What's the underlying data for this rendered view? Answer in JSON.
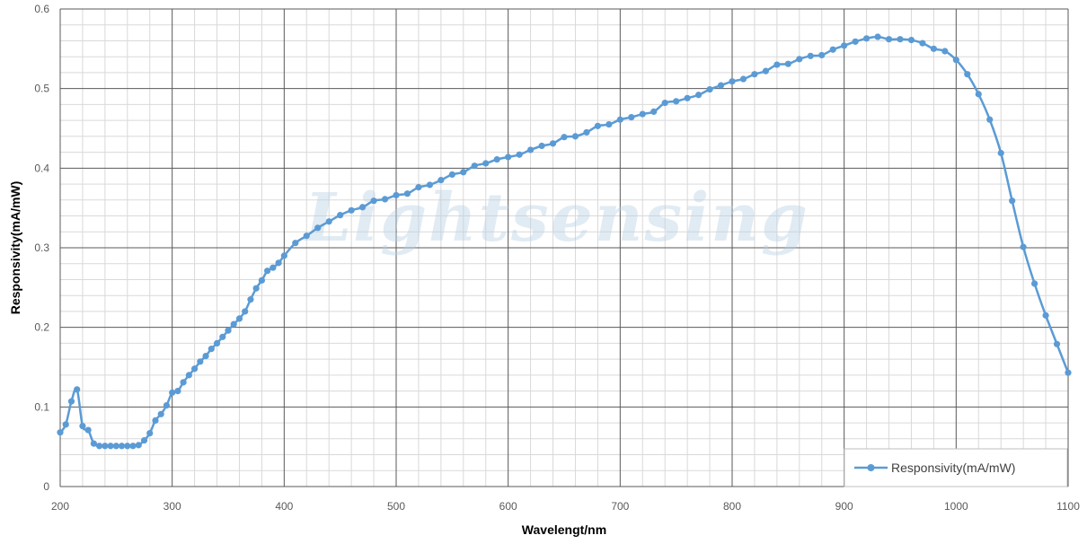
{
  "chart_data": {
    "type": "line",
    "title": "",
    "xlabel": "Wavelengt/nm",
    "ylabel": "Responsivity(mA/mW)",
    "xlim": [
      200,
      1100
    ],
    "ylim": [
      0,
      0.6
    ],
    "x_ticks": [
      "200",
      "300",
      "400",
      "500",
      "600",
      "700",
      "800",
      "900",
      "1000",
      "1100"
    ],
    "y_ticks": [
      "0",
      "0.1",
      "0.2",
      "0.3",
      "0.4",
      "0.5",
      "0.6"
    ],
    "grid": true,
    "legend_position": "bottom-right",
    "watermark": "Lightsensing",
    "color": "#5b9bd5",
    "series": [
      {
        "name": "Responsivity(mA/mW)",
        "x": [
          200,
          205,
          210,
          215,
          220,
          225,
          230,
          235,
          240,
          245,
          250,
          255,
          260,
          265,
          270,
          275,
          280,
          285,
          290,
          295,
          300,
          305,
          310,
          315,
          320,
          325,
          330,
          335,
          340,
          345,
          350,
          355,
          360,
          365,
          370,
          375,
          380,
          385,
          390,
          395,
          400,
          410,
          420,
          430,
          440,
          450,
          460,
          470,
          480,
          490,
          500,
          510,
          520,
          530,
          540,
          550,
          560,
          570,
          580,
          590,
          600,
          610,
          620,
          630,
          640,
          650,
          660,
          670,
          680,
          690,
          700,
          710,
          720,
          730,
          740,
          750,
          760,
          770,
          780,
          790,
          800,
          810,
          820,
          830,
          840,
          850,
          860,
          870,
          880,
          890,
          900,
          910,
          920,
          930,
          940,
          950,
          960,
          970,
          980,
          990,
          1000,
          1010,
          1020,
          1030,
          1040,
          1050,
          1060,
          1070,
          1080,
          1090,
          1100
        ],
        "y": [
          0.068,
          0.078,
          0.107,
          0.122,
          0.076,
          0.071,
          0.054,
          0.051,
          0.051,
          0.051,
          0.051,
          0.051,
          0.051,
          0.051,
          0.052,
          0.058,
          0.067,
          0.083,
          0.091,
          0.102,
          0.118,
          0.12,
          0.131,
          0.14,
          0.148,
          0.157,
          0.164,
          0.173,
          0.18,
          0.188,
          0.196,
          0.204,
          0.211,
          0.22,
          0.235,
          0.249,
          0.259,
          0.271,
          0.275,
          0.281,
          0.29,
          0.306,
          0.315,
          0.325,
          0.333,
          0.341,
          0.347,
          0.351,
          0.359,
          0.361,
          0.366,
          0.368,
          0.376,
          0.379,
          0.385,
          0.392,
          0.395,
          0.403,
          0.406,
          0.411,
          0.414,
          0.417,
          0.423,
          0.428,
          0.431,
          0.439,
          0.44,
          0.445,
          0.453,
          0.455,
          0.461,
          0.464,
          0.468,
          0.471,
          0.482,
          0.484,
          0.488,
          0.492,
          0.499,
          0.504,
          0.509,
          0.512,
          0.518,
          0.522,
          0.53,
          0.531,
          0.537,
          0.541,
          0.542,
          0.549,
          0.554,
          0.559,
          0.563,
          0.565,
          0.562,
          0.562,
          0.561,
          0.557,
          0.55,
          0.547,
          0.536,
          0.518,
          0.493,
          0.461,
          0.419,
          0.359,
          0.301,
          0.255,
          0.215,
          0.179,
          0.143
        ]
      }
    ]
  }
}
